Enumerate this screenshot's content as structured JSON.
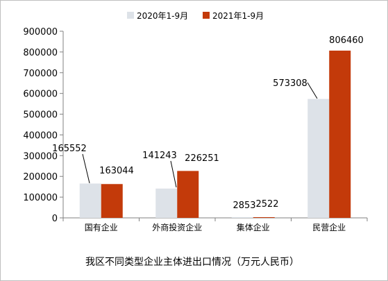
{
  "chart_data": {
    "type": "bar",
    "title": "我区不同类型企业主体进出口情况（万元人民币）",
    "categories": [
      "国有企业",
      "外商投资企业",
      "集体企业",
      "民营企业"
    ],
    "series": [
      {
        "name": "2020年1-9月",
        "color": "#dde2e8",
        "values": [
          165552,
          141243,
          2853,
          573308
        ]
      },
      {
        "name": "2021年1-9月",
        "color": "#c33a0a",
        "values": [
          163044,
          226251,
          2522,
          806460
        ]
      }
    ],
    "ylim": [
      0,
      900000
    ],
    "yticks": [
      0,
      100000,
      200000,
      300000,
      400000,
      500000,
      600000,
      700000,
      800000,
      900000
    ],
    "grid": false,
    "legend": "top"
  }
}
